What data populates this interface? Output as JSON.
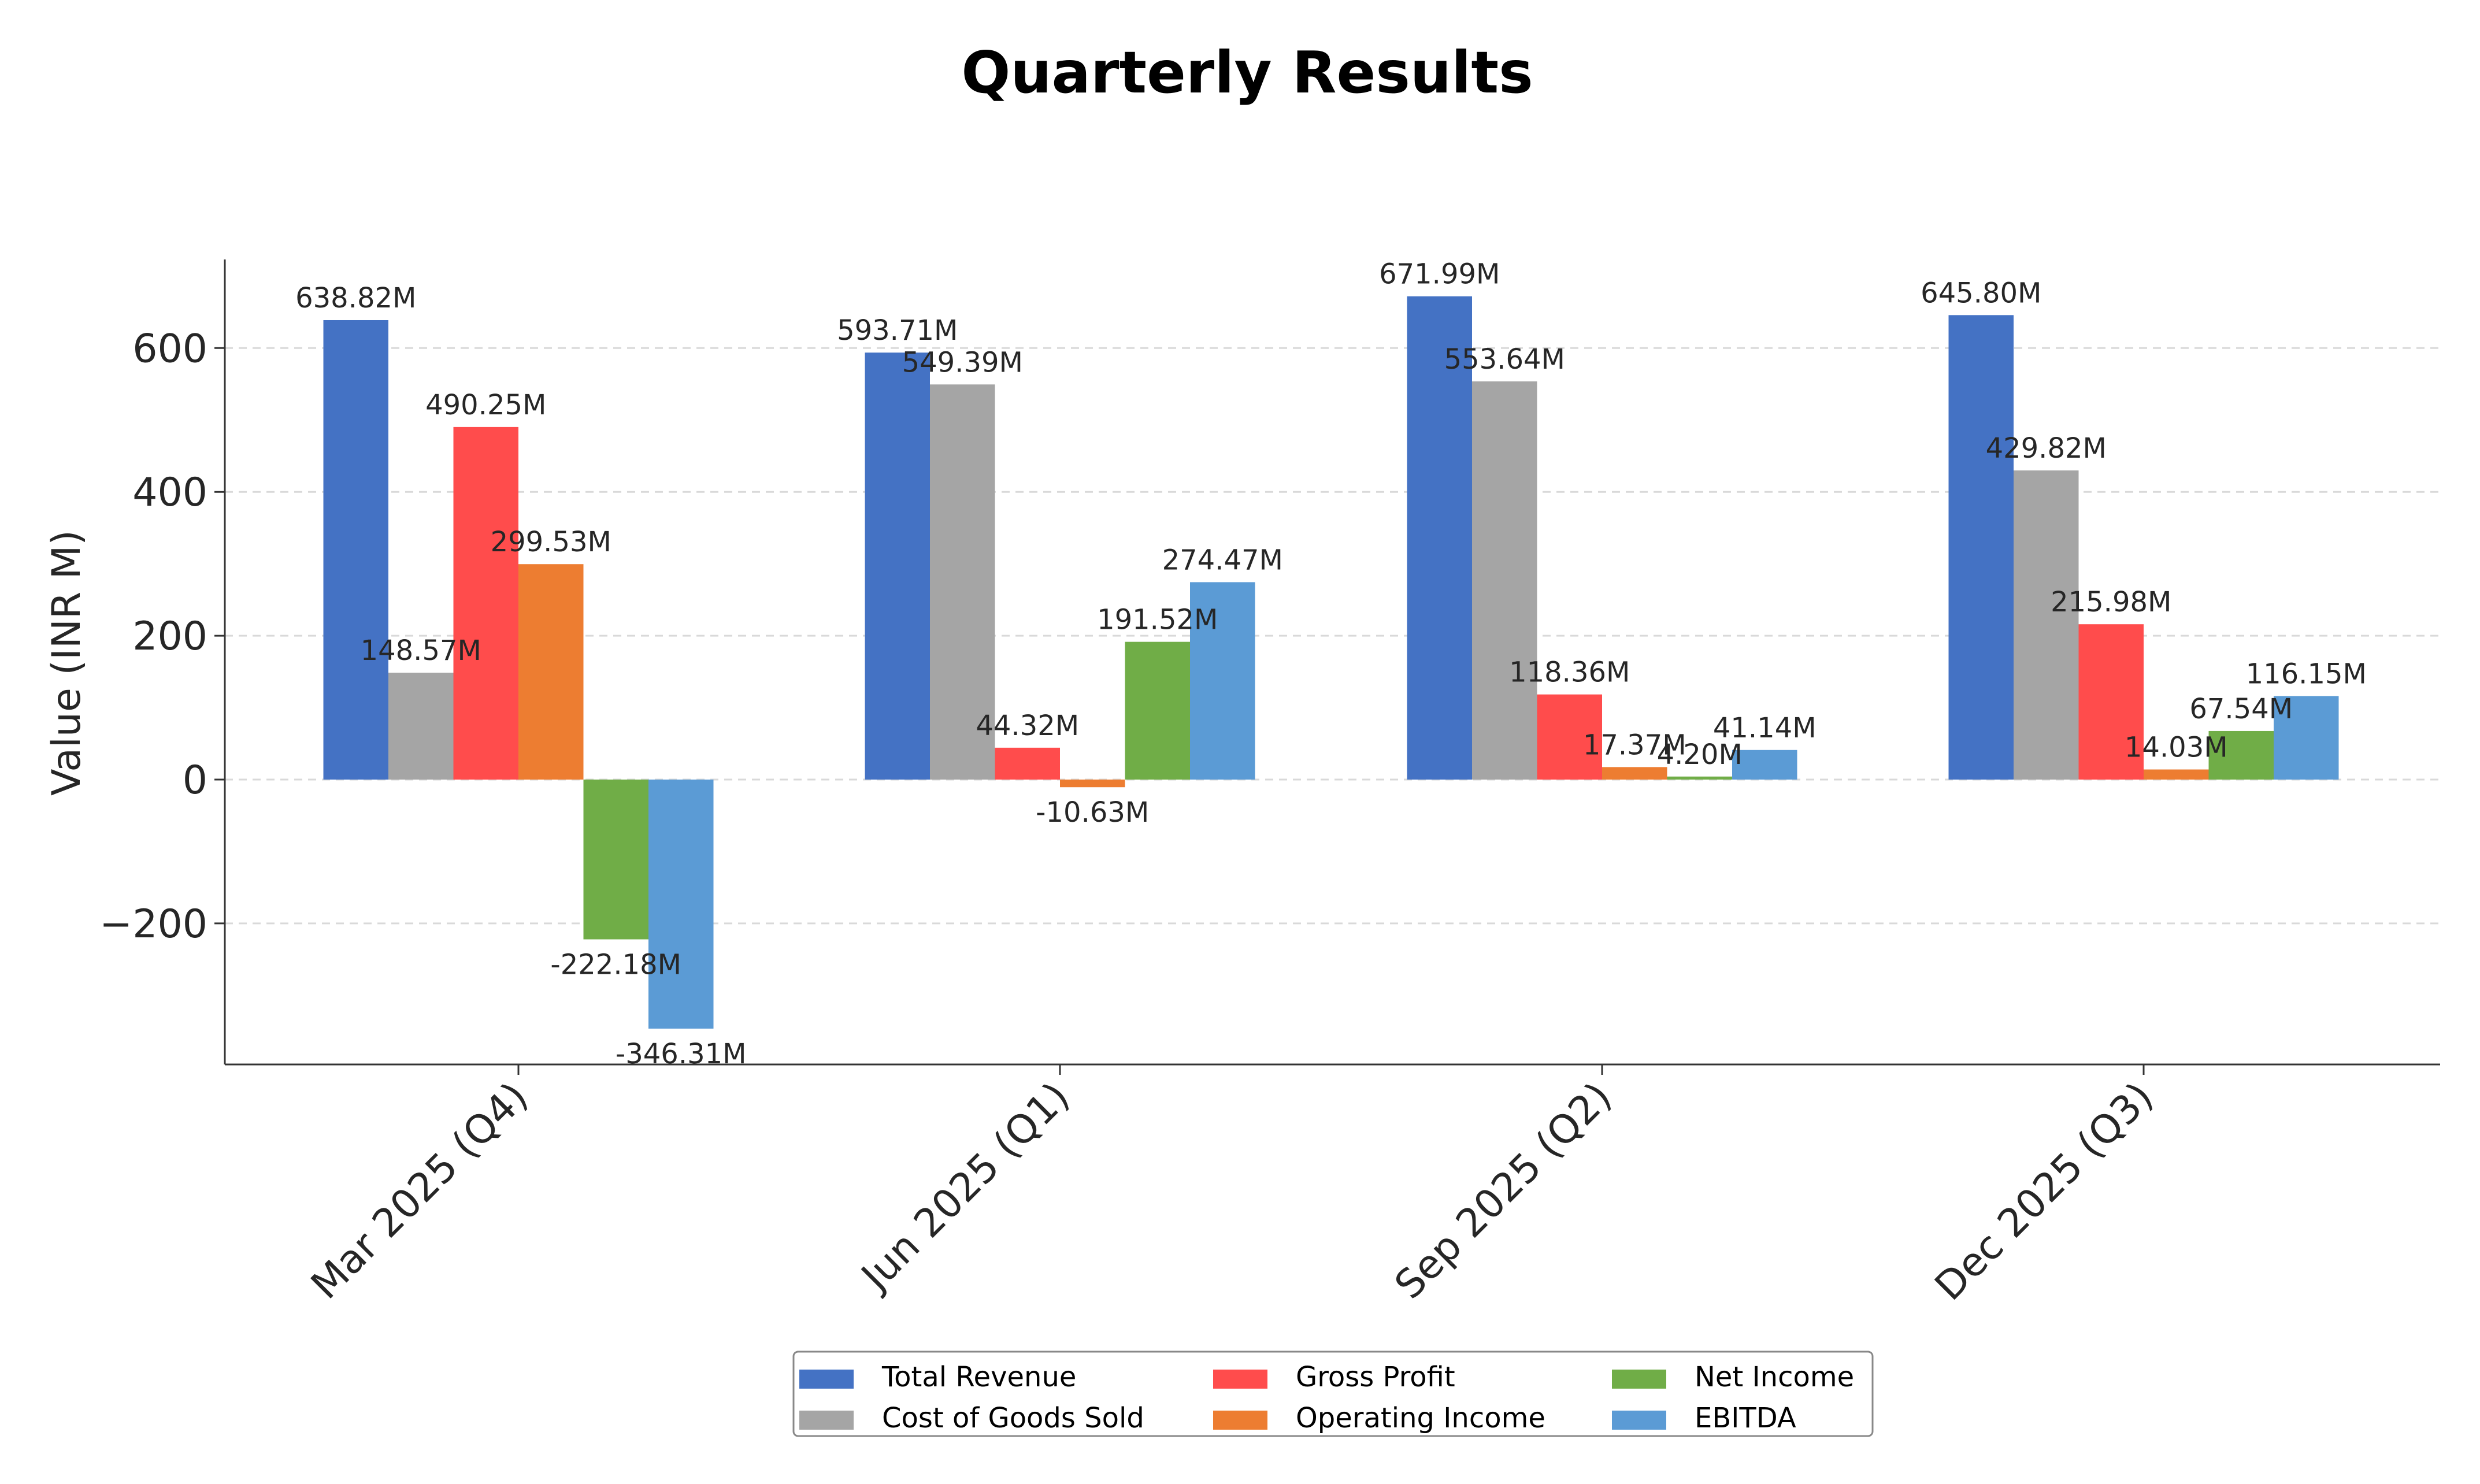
{
  "chart_data": {
    "type": "bar",
    "title": "Quarterly Results",
    "xlabel": "",
    "ylabel": "Value (INR M)",
    "categories": [
      "Mar 2025 (Q4)",
      "Jun 2025 (Q1)",
      "Sep 2025 (Q2)",
      "Dec 2025 (Q3)"
    ],
    "yticks": [
      -200,
      0,
      200,
      400,
      600
    ],
    "ytick_labels": [
      "−200",
      "0",
      "200",
      "400",
      "600"
    ],
    "ylim": [
      -397,
      722
    ],
    "grid": "horizontal dashed",
    "legend_position": "bottom-center",
    "series": [
      {
        "name": "Total Revenue",
        "color": "#4472c4",
        "values": [
          638.82,
          593.71,
          671.99,
          645.8
        ],
        "labels": [
          "638.82M",
          "593.71M",
          "671.99M",
          "645.80M"
        ]
      },
      {
        "name": "Cost of Goods Sold",
        "color": "#a5a5a5",
        "values": [
          148.57,
          549.39,
          553.64,
          429.82
        ],
        "labels": [
          "148.57M",
          "549.39M",
          "553.64M",
          "429.82M"
        ]
      },
      {
        "name": "Gross Profit",
        "color": "#ff4c4c",
        "values": [
          490.25,
          44.32,
          118.36,
          215.98
        ],
        "labels": [
          "490.25M",
          "44.32M",
          "118.36M",
          "215.98M"
        ]
      },
      {
        "name": "Operating Income",
        "color": "#ed7d31",
        "values": [
          299.53,
          -10.63,
          17.37,
          14.03
        ],
        "labels": [
          "299.53M",
          "-10.63M",
          "17.37M",
          "14.03M"
        ]
      },
      {
        "name": "Net Income",
        "color": "#70ad47",
        "values": [
          -222.18,
          191.52,
          4.2,
          67.54
        ],
        "labels": [
          "-222.18M",
          "191.52M",
          "4.20M",
          "67.54M"
        ]
      },
      {
        "name": "EBITDA",
        "color": "#5b9bd5",
        "values": [
          -346.31,
          274.47,
          41.14,
          116.15
        ],
        "labels": [
          "-346.31M",
          "274.47M",
          "41.14M",
          "116.15M"
        ]
      }
    ]
  }
}
